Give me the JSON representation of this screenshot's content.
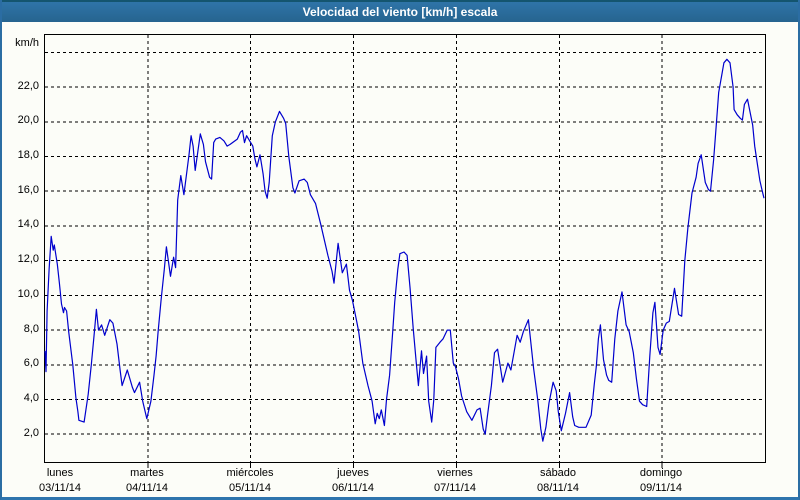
{
  "window": {
    "title": "Velocidad del viento [km/h] escala"
  },
  "colors": {
    "titlebar_blue": "#2b6da3",
    "titlebar_top_edge": "#14556f",
    "window_border": "#2b6da3",
    "plot_background": "#fcfdf8",
    "frame_and_grid": "#000000",
    "series_line": "#0000cd",
    "title_text": "#ffffff"
  },
  "chart_data": {
    "type": "line",
    "title": "Velocidad del viento [km/h] escala",
    "y_unit_label": "km/h",
    "ylim": [
      0.4,
      25.0
    ],
    "xlim_days": [
      0,
      7
    ],
    "grid": "dashed, every 2 km/h horizontally and every day vertically",
    "legend_position": "none",
    "y_ticks": [
      {
        "v": 22,
        "label": "22,0"
      },
      {
        "v": 20,
        "label": "20,0"
      },
      {
        "v": 18,
        "label": "18,0"
      },
      {
        "v": 16,
        "label": "16,0"
      },
      {
        "v": 14,
        "label": "14,0"
      },
      {
        "v": 12,
        "label": "12,0"
      },
      {
        "v": 10,
        "label": "10,0"
      },
      {
        "v": 8,
        "label": "8,0"
      },
      {
        "v": 6,
        "label": "6,0"
      },
      {
        "v": 4,
        "label": "4,0"
      },
      {
        "v": 2,
        "label": "2,0"
      }
    ],
    "y_grid_values": [
      2,
      4,
      6,
      8,
      10,
      12,
      14,
      16,
      18,
      20,
      22,
      24
    ],
    "x_days": [
      {
        "name": "lunes",
        "date": "03/11/14"
      },
      {
        "name": "martes",
        "date": "04/11/14"
      },
      {
        "name": "miércoles",
        "date": "05/11/14"
      },
      {
        "name": "jueves",
        "date": "06/11/14"
      },
      {
        "name": "viernes",
        "date": "07/11/14"
      },
      {
        "name": "sábado",
        "date": "08/11/14"
      },
      {
        "name": "domingo",
        "date": "09/11/14"
      }
    ],
    "series": [
      {
        "name": "Velocidad del viento (km/h)",
        "points_day_value": [
          [
            0.0,
            6.8
          ],
          [
            0.01,
            5.6
          ],
          [
            0.02,
            9.1
          ],
          [
            0.04,
            11.5
          ],
          [
            0.06,
            13.4
          ],
          [
            0.08,
            12.6
          ],
          [
            0.09,
            12.9
          ],
          [
            0.12,
            11.8
          ],
          [
            0.14,
            10.7
          ],
          [
            0.16,
            9.5
          ],
          [
            0.18,
            9.0
          ],
          [
            0.19,
            9.3
          ],
          [
            0.21,
            9.1
          ],
          [
            0.23,
            7.9
          ],
          [
            0.27,
            6.0
          ],
          [
            0.3,
            4.1
          ],
          [
            0.32,
            3.3
          ],
          [
            0.33,
            2.8
          ],
          [
            0.38,
            2.7
          ],
          [
            0.42,
            4.3
          ],
          [
            0.45,
            6.0
          ],
          [
            0.48,
            7.9
          ],
          [
            0.5,
            9.2
          ],
          [
            0.52,
            8.0
          ],
          [
            0.55,
            8.3
          ],
          [
            0.58,
            7.7
          ],
          [
            0.63,
            8.6
          ],
          [
            0.66,
            8.4
          ],
          [
            0.7,
            7.2
          ],
          [
            0.73,
            5.7
          ],
          [
            0.75,
            4.8
          ],
          [
            0.8,
            5.7
          ],
          [
            0.85,
            4.7
          ],
          [
            0.87,
            4.4
          ],
          [
            0.92,
            5.0
          ],
          [
            0.95,
            3.9
          ],
          [
            0.99,
            2.9
          ],
          [
            1.03,
            3.9
          ],
          [
            1.06,
            5.4
          ],
          [
            1.08,
            6.5
          ],
          [
            1.1,
            7.9
          ],
          [
            1.13,
            9.8
          ],
          [
            1.16,
            11.5
          ],
          [
            1.18,
            12.8
          ],
          [
            1.22,
            11.1
          ],
          [
            1.25,
            12.2
          ],
          [
            1.27,
            11.6
          ],
          [
            1.29,
            15.5
          ],
          [
            1.32,
            16.9
          ],
          [
            1.35,
            15.8
          ],
          [
            1.4,
            18.1
          ],
          [
            1.42,
            19.2
          ],
          [
            1.44,
            18.6
          ],
          [
            1.46,
            17.2
          ],
          [
            1.51,
            19.3
          ],
          [
            1.54,
            18.7
          ],
          [
            1.56,
            17.7
          ],
          [
            1.6,
            16.8
          ],
          [
            1.62,
            16.7
          ],
          [
            1.64,
            18.8
          ],
          [
            1.66,
            19.0
          ],
          [
            1.7,
            19.1
          ],
          [
            1.74,
            18.9
          ],
          [
            1.77,
            18.6
          ],
          [
            1.8,
            18.7
          ],
          [
            1.87,
            19.0
          ],
          [
            1.9,
            19.4
          ],
          [
            1.92,
            19.5
          ],
          [
            1.94,
            18.8
          ],
          [
            1.96,
            19.2
          ],
          [
            1.99,
            18.9
          ],
          [
            2.02,
            18.6
          ],
          [
            2.04,
            17.9
          ],
          [
            2.06,
            17.4
          ],
          [
            2.09,
            18.1
          ],
          [
            2.12,
            17.0
          ],
          [
            2.14,
            16.0
          ],
          [
            2.16,
            15.6
          ],
          [
            2.18,
            16.5
          ],
          [
            2.21,
            19.2
          ],
          [
            2.24,
            20.0
          ],
          [
            2.28,
            20.6
          ],
          [
            2.32,
            20.2
          ],
          [
            2.34,
            19.9
          ],
          [
            2.37,
            18.0
          ],
          [
            2.41,
            16.2
          ],
          [
            2.43,
            15.9
          ],
          [
            2.47,
            16.6
          ],
          [
            2.52,
            16.7
          ],
          [
            2.55,
            16.5
          ],
          [
            2.58,
            15.8
          ],
          [
            2.63,
            15.3
          ],
          [
            2.68,
            14.1
          ],
          [
            2.75,
            12.3
          ],
          [
            2.79,
            11.4
          ],
          [
            2.81,
            10.7
          ],
          [
            2.85,
            13.0
          ],
          [
            2.89,
            11.3
          ],
          [
            2.93,
            11.8
          ],
          [
            2.96,
            10.3
          ],
          [
            2.99,
            9.7
          ],
          [
            3.03,
            8.5
          ],
          [
            3.05,
            7.9
          ],
          [
            3.09,
            6.1
          ],
          [
            3.14,
            4.8
          ],
          [
            3.18,
            3.9
          ],
          [
            3.21,
            2.6
          ],
          [
            3.23,
            3.2
          ],
          [
            3.25,
            2.9
          ],
          [
            3.27,
            3.4
          ],
          [
            3.3,
            2.5
          ],
          [
            3.32,
            4.0
          ],
          [
            3.35,
            5.4
          ],
          [
            3.38,
            7.9
          ],
          [
            3.4,
            9.6
          ],
          [
            3.43,
            11.5
          ],
          [
            3.45,
            12.4
          ],
          [
            3.49,
            12.5
          ],
          [
            3.52,
            12.3
          ],
          [
            3.55,
            10.4
          ],
          [
            3.58,
            8.1
          ],
          [
            3.61,
            6.1
          ],
          [
            3.63,
            4.8
          ],
          [
            3.66,
            6.8
          ],
          [
            3.68,
            5.5
          ],
          [
            3.71,
            6.5
          ],
          [
            3.73,
            3.9
          ],
          [
            3.76,
            2.7
          ],
          [
            3.78,
            4.0
          ],
          [
            3.8,
            7.0
          ],
          [
            3.84,
            7.3
          ],
          [
            3.87,
            7.5
          ],
          [
            3.91,
            8.0
          ],
          [
            3.94,
            8.0
          ],
          [
            3.97,
            6.1
          ],
          [
            3.99,
            5.9
          ],
          [
            4.02,
            5.2
          ],
          [
            4.05,
            4.2
          ],
          [
            4.1,
            3.3
          ],
          [
            4.15,
            2.8
          ],
          [
            4.2,
            3.4
          ],
          [
            4.23,
            3.5
          ],
          [
            4.26,
            2.3
          ],
          [
            4.28,
            2.0
          ],
          [
            4.3,
            3.0
          ],
          [
            4.34,
            4.8
          ],
          [
            4.37,
            6.7
          ],
          [
            4.4,
            6.9
          ],
          [
            4.45,
            5.0
          ],
          [
            4.5,
            6.1
          ],
          [
            4.53,
            5.7
          ],
          [
            4.59,
            7.7
          ],
          [
            4.62,
            7.3
          ],
          [
            4.65,
            7.9
          ],
          [
            4.7,
            8.6
          ],
          [
            4.75,
            5.8
          ],
          [
            4.79,
            4.0
          ],
          [
            4.82,
            2.3
          ],
          [
            4.84,
            1.6
          ],
          [
            4.87,
            2.4
          ],
          [
            4.9,
            3.8
          ],
          [
            4.94,
            5.0
          ],
          [
            4.97,
            4.5
          ],
          [
            4.99,
            3.3
          ],
          [
            5.02,
            2.2
          ],
          [
            5.06,
            3.2
          ],
          [
            5.1,
            4.4
          ],
          [
            5.13,
            3.0
          ],
          [
            5.15,
            2.5
          ],
          [
            5.19,
            2.4
          ],
          [
            5.26,
            2.4
          ],
          [
            5.31,
            3.1
          ],
          [
            5.34,
            4.9
          ],
          [
            5.36,
            5.9
          ],
          [
            5.38,
            7.5
          ],
          [
            5.4,
            8.3
          ],
          [
            5.43,
            6.3
          ],
          [
            5.46,
            5.4
          ],
          [
            5.48,
            5.1
          ],
          [
            5.51,
            5.0
          ],
          [
            5.54,
            7.5
          ],
          [
            5.57,
            9.1
          ],
          [
            5.61,
            10.2
          ],
          [
            5.65,
            8.3
          ],
          [
            5.68,
            7.9
          ],
          [
            5.72,
            6.7
          ],
          [
            5.75,
            5.2
          ],
          [
            5.78,
            3.9
          ],
          [
            5.81,
            3.7
          ],
          [
            5.85,
            3.6
          ],
          [
            5.88,
            6.5
          ],
          [
            5.91,
            9.0
          ],
          [
            5.93,
            9.6
          ],
          [
            5.96,
            7.0
          ],
          [
            5.98,
            6.6
          ],
          [
            6.01,
            8.0
          ],
          [
            6.04,
            8.4
          ],
          [
            6.07,
            8.5
          ],
          [
            6.12,
            10.4
          ],
          [
            6.16,
            8.9
          ],
          [
            6.19,
            8.8
          ],
          [
            6.22,
            12.0
          ],
          [
            6.25,
            13.9
          ],
          [
            6.29,
            15.9
          ],
          [
            6.33,
            16.8
          ],
          [
            6.35,
            17.6
          ],
          [
            6.38,
            18.1
          ],
          [
            6.42,
            16.5
          ],
          [
            6.45,
            16.1
          ],
          [
            6.47,
            16.0
          ],
          [
            6.5,
            17.8
          ],
          [
            6.52,
            19.3
          ],
          [
            6.55,
            21.7
          ],
          [
            6.58,
            22.7
          ],
          [
            6.6,
            23.4
          ],
          [
            6.63,
            23.6
          ],
          [
            6.66,
            23.4
          ],
          [
            6.69,
            22.0
          ],
          [
            6.7,
            20.7
          ],
          [
            6.73,
            20.4
          ],
          [
            6.76,
            20.2
          ],
          [
            6.78,
            20.1
          ],
          [
            6.8,
            21.0
          ],
          [
            6.83,
            21.3
          ],
          [
            6.88,
            19.8
          ],
          [
            6.9,
            18.6
          ],
          [
            6.93,
            17.4
          ],
          [
            6.95,
            16.6
          ],
          [
            6.97,
            16.1
          ],
          [
            6.99,
            15.6
          ]
        ]
      }
    ]
  }
}
